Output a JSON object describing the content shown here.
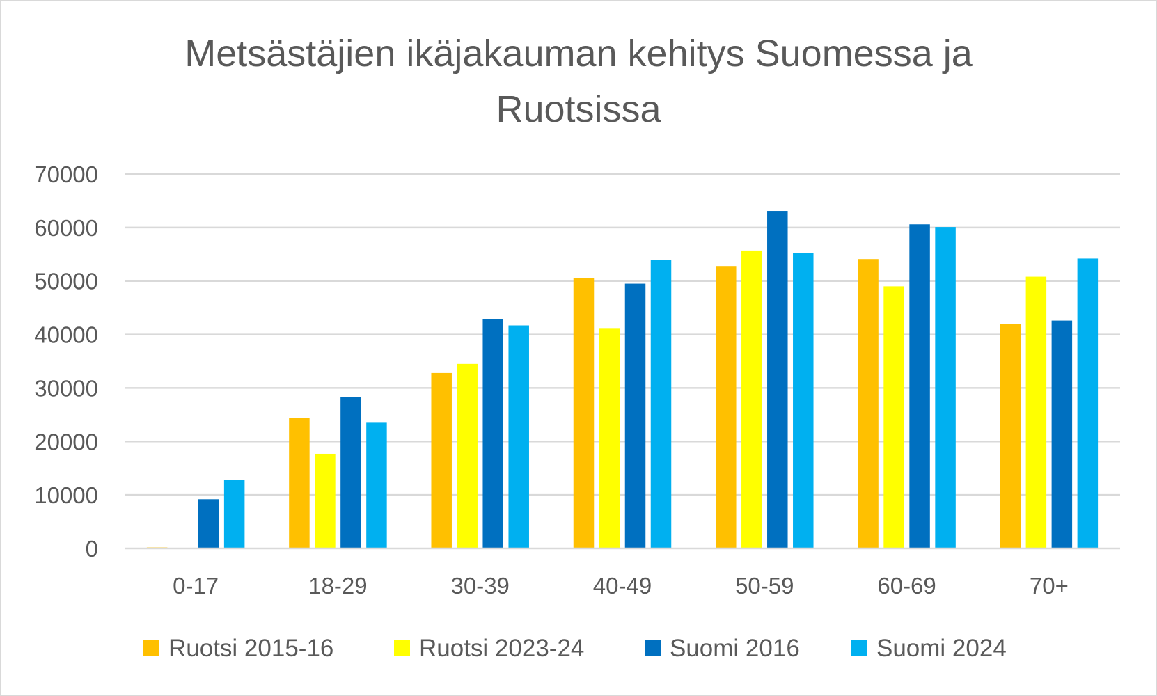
{
  "chart_data": {
    "type": "bar",
    "title": "Metsästäjien ikäjakauman kehitys Suomessa ja Ruotsissa",
    "title_lines": [
      "Metsästäjien ikäjakauman kehitys Suomessa ja",
      "Ruotsissa"
    ],
    "xlabel": "",
    "ylabel": "",
    "categories": [
      "0-17",
      "18-29",
      "30-39",
      "40-49",
      "50-59",
      "60-69",
      "70+"
    ],
    "series": [
      {
        "name": "Ruotsi 2015-16",
        "color": "#FFC000",
        "values": [
          200,
          24400,
          32800,
          50500,
          52800,
          54100,
          42000
        ]
      },
      {
        "name": "Ruotsi 2023-24",
        "color": "#FFFF00",
        "values": [
          0,
          17700,
          34500,
          41200,
          55700,
          49000,
          50800
        ]
      },
      {
        "name": "Suomi 2016",
        "color": "#0070C0",
        "values": [
          9200,
          28300,
          42900,
          49500,
          63100,
          60600,
          42600
        ]
      },
      {
        "name": "Suomi 2024",
        "color": "#00B0F0",
        "values": [
          12800,
          23500,
          41700,
          53900,
          55200,
          60100,
          54200
        ]
      }
    ],
    "yticks": [
      "0",
      "10000",
      "20000",
      "30000",
      "40000",
      "50000",
      "60000",
      "70000"
    ],
    "ylim": [
      0,
      70000
    ],
    "grid": true,
    "legend_position": "bottom"
  }
}
